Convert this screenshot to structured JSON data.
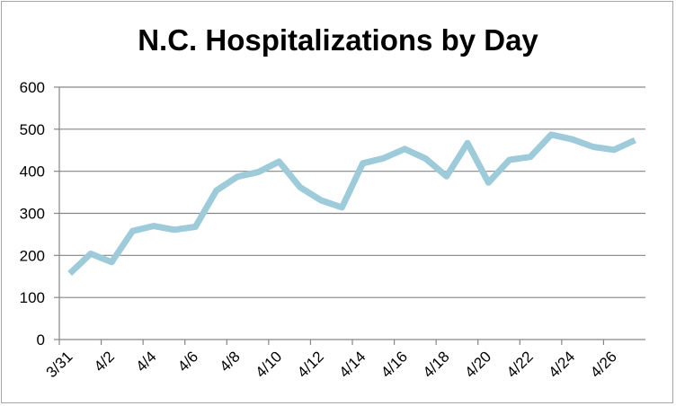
{
  "chart_data": {
    "type": "line",
    "title": "N.C. Hospitalizations by Day",
    "xlabel": "",
    "ylabel": "",
    "ylim": [
      0,
      600
    ],
    "yticks": [
      0,
      100,
      200,
      300,
      400,
      500,
      600
    ],
    "grid": true,
    "legend": "none",
    "line_color": "#9dcbd9",
    "categories": [
      "3/31",
      "4/1",
      "4/2",
      "4/3",
      "4/4",
      "4/5",
      "4/6",
      "4/7",
      "4/8",
      "4/9",
      "4/10",
      "4/11",
      "4/12",
      "4/13",
      "4/14",
      "4/15",
      "4/16",
      "4/17",
      "4/18",
      "4/19",
      "4/20",
      "4/21",
      "4/22",
      "4/23",
      "4/24",
      "4/25",
      "4/26",
      "4/27"
    ],
    "x_tick_labels": [
      "3/31",
      "4/2",
      "4/4",
      "4/6",
      "4/8",
      "4/10",
      "4/12",
      "4/14",
      "4/16",
      "4/18",
      "4/20",
      "4/22",
      "4/24",
      "4/26"
    ],
    "series": [
      {
        "values": [
          157,
          204,
          184,
          258,
          270,
          261,
          268,
          354,
          387,
          398,
          423,
          362,
          331,
          314,
          419,
          431,
          453,
          430,
          388,
          467,
          373,
          427,
          434,
          487,
          476,
          458,
          451,
          474
        ]
      }
    ]
  }
}
